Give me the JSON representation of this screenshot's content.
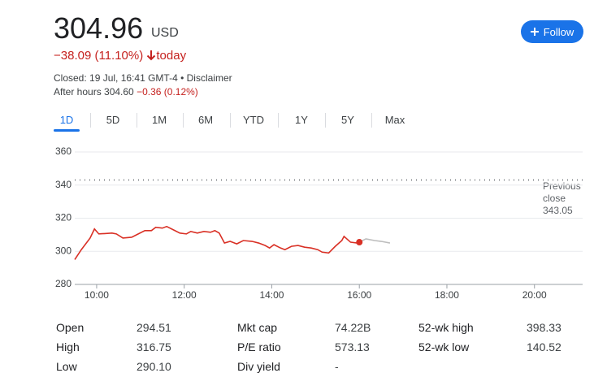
{
  "quote": {
    "price": "304.96",
    "currency": "USD",
    "change": "−38.09 (11.10%)",
    "period": "today",
    "status": "Closed: 19 Jul, 16:41 GMT-4 • Disclaimer",
    "after_hours": "After hours 304.60",
    "after_hours_change": "−0.36 (0.12%)"
  },
  "follow_button": "Follow",
  "ranges": [
    "1D",
    "5D",
    "1M",
    "6M",
    "YTD",
    "1Y",
    "5Y",
    "Max"
  ],
  "chart_data": {
    "type": "line",
    "xlim": [
      9.5,
      21.1
    ],
    "ylim": [
      280,
      360
    ],
    "xticks": [
      {
        "value": 10,
        "label": "10:00"
      },
      {
        "value": 12,
        "label": "12:00"
      },
      {
        "value": 14,
        "label": "14:00"
      },
      {
        "value": 16,
        "label": "16:00"
      },
      {
        "value": 18,
        "label": "18:00"
      },
      {
        "value": 20,
        "label": "20:00"
      }
    ],
    "yticks": [
      280,
      300,
      320,
      340,
      360
    ],
    "grid": true,
    "series": [
      {
        "color": "#d93025",
        "x": [
          9.5,
          9.65,
          9.85,
          9.95,
          10.05,
          10.35,
          10.45,
          10.6,
          10.8,
          10.95,
          11.1,
          11.25,
          11.35,
          11.5,
          11.6,
          11.75,
          11.9,
          12.05,
          12.15,
          12.3,
          12.45,
          12.6,
          12.7,
          12.8,
          12.92,
          13.05,
          13.2,
          13.35,
          13.55,
          13.7,
          13.85,
          13.95,
          14.05,
          14.2,
          14.3,
          14.45,
          14.6,
          14.75,
          14.9,
          15.05,
          15.15,
          15.3,
          15.45,
          15.6,
          15.65,
          15.8,
          15.95,
          16.0
        ],
        "values": [
          295,
          301,
          308,
          313.5,
          310.5,
          311,
          310.5,
          308,
          308.5,
          310.5,
          312.5,
          312.5,
          314.5,
          314,
          315,
          313,
          311,
          310.5,
          312,
          311,
          312,
          311.5,
          312.5,
          311,
          305,
          306,
          304.5,
          306.5,
          306,
          305,
          303.5,
          302,
          304,
          302,
          301,
          303,
          303.5,
          302.5,
          302,
          301,
          299.5,
          299,
          303,
          306.5,
          309,
          305.5,
          305,
          305.5
        ]
      },
      {
        "color": "#bdbdbd",
        "x": [
          16.0,
          16.15,
          16.35,
          16.5,
          16.7
        ],
        "values": [
          305.5,
          307.5,
          306.5,
          306,
          305
        ]
      }
    ],
    "reference": {
      "label": "Previous close",
      "value": 343.05
    }
  },
  "stats": [
    {
      "label": "Open",
      "value": "294.51"
    },
    {
      "label": "High",
      "value": "316.75"
    },
    {
      "label": "Low",
      "value": "290.10"
    },
    {
      "label": "Mkt cap",
      "value": "74.22B"
    },
    {
      "label": "P/E ratio",
      "value": "573.13"
    },
    {
      "label": "Div yield",
      "value": "-"
    },
    {
      "label": "52-wk high",
      "value": "398.33"
    },
    {
      "label": "52-wk low",
      "value": "140.52"
    }
  ]
}
